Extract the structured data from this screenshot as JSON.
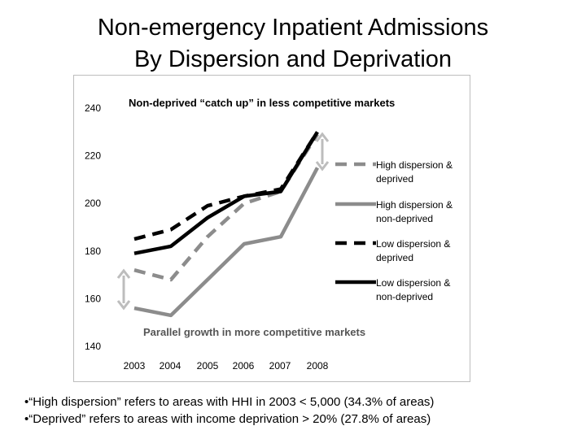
{
  "slide": {
    "title_line1": "Non-emergency Inpatient Admissions",
    "title_line2": "By Dispersion and Deprivation",
    "notes": [
      "•“High dispersion” refers to areas with HHI in 2003 < 5,000 (34.3% of areas)",
      "•“Deprived” refers to areas with income deprivation > 20% (27.8% of areas)"
    ]
  },
  "chart_data": {
    "type": "line",
    "title": "",
    "xlabel": "",
    "ylabel": "",
    "x": [
      "2003",
      "2004",
      "2005",
      "2006",
      "2007",
      "2008"
    ],
    "ylim": [
      140,
      240
    ],
    "yticks": [
      140,
      160,
      180,
      200,
      220,
      240
    ],
    "grid": false,
    "legend_position": "right",
    "series": [
      {
        "name": "High dispersion & deprived",
        "values": [
          172,
          168,
          186,
          200,
          205,
          229
        ],
        "color": "#8c8c8c",
        "dash": true
      },
      {
        "name": "High dispersion & non-deprived",
        "values": [
          156,
          153,
          168,
          183,
          186,
          215
        ],
        "color": "#8c8c8c",
        "dash": false
      },
      {
        "name": "Low dispersion & deprived",
        "values": [
          185,
          189,
          199,
          203,
          206,
          230
        ],
        "color": "#000000",
        "dash": true
      },
      {
        "name": "Low dispersion & non-deprived",
        "values": [
          179,
          182,
          194,
          203,
          205,
          230
        ],
        "color": "#000000",
        "dash": false
      }
    ],
    "annotations": [
      "Non-deprived “catch up” in less competitive markets",
      "Parallel growth in more competitive markets"
    ],
    "arrow_color": "#bdbdbd"
  }
}
